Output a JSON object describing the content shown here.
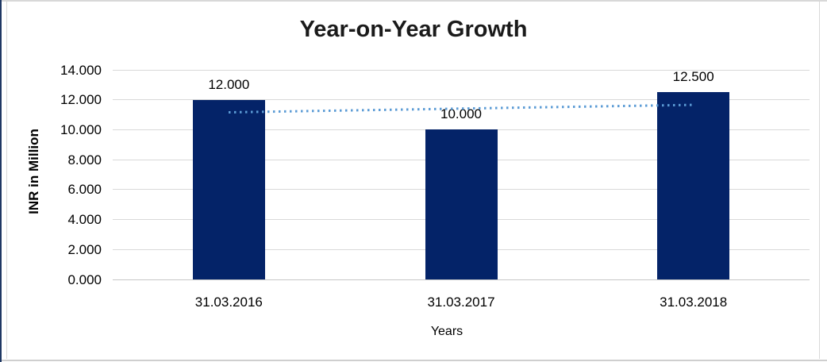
{
  "chart_data": {
    "type": "bar",
    "title": "Year-on-Year Growth",
    "xlabel": "Years",
    "ylabel": "INR in Million",
    "categories": [
      "31.03.2016",
      "31.03.2017",
      "31.03.2018"
    ],
    "values": [
      12.0,
      10.0,
      12.5
    ],
    "value_labels": [
      "12.000",
      "10.000",
      "12.500"
    ],
    "ylim": [
      0,
      14
    ],
    "yticks": [
      0,
      2,
      4,
      6,
      8,
      10,
      12,
      14
    ],
    "ytick_labels": [
      "0.000",
      "2.000",
      "4.000",
      "6.000",
      "8.000",
      "10.000",
      "12.000",
      "14.000"
    ],
    "grid": true,
    "legend": "none",
    "bar_color": "#042368",
    "gridline_color": "#d9d9d9",
    "trendline": {
      "type": "linear",
      "style": "dotted",
      "color": "#5b9bd5",
      "start_value": 11.25,
      "end_value": 11.75
    }
  }
}
